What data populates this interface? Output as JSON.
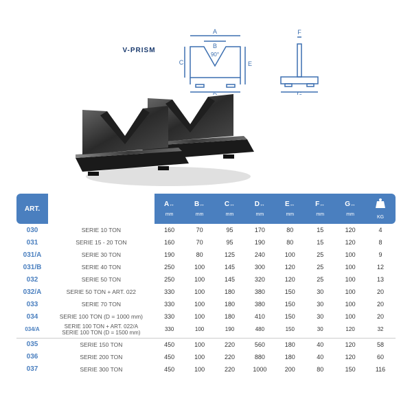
{
  "title": "V-PRISM",
  "diagram": {
    "angle": "90°",
    "labels": [
      "A",
      "B",
      "C",
      "D",
      "E",
      "F",
      "G"
    ],
    "color": "#3c6fb0"
  },
  "header": {
    "art": "ART.",
    "cols": [
      "A",
      "B",
      "C",
      "D",
      "E",
      "F",
      "G"
    ],
    "unit": "mm",
    "weight": "KG"
  },
  "rows": [
    {
      "art": "030",
      "desc": "SERIE 10 TON",
      "v": [
        "160",
        "70",
        "95",
        "170",
        "80",
        "15",
        "120",
        "4"
      ]
    },
    {
      "art": "031",
      "desc": "SERIE 15 - 20 TON",
      "v": [
        "160",
        "70",
        "95",
        "190",
        "80",
        "15",
        "120",
        "8"
      ]
    },
    {
      "art": "031/A",
      "desc": "SERIE 30 TON",
      "v": [
        "190",
        "80",
        "125",
        "240",
        "100",
        "25",
        "100",
        "9"
      ]
    },
    {
      "art": "031/B",
      "desc": "SERIE 40 TON",
      "v": [
        "250",
        "100",
        "145",
        "300",
        "120",
        "25",
        "100",
        "12"
      ]
    },
    {
      "art": "032",
      "desc": "SERIE 50 TON",
      "v": [
        "250",
        "100",
        "145",
        "320",
        "120",
        "25",
        "100",
        "13"
      ]
    },
    {
      "art": "032/A",
      "desc": "SERIE 50 TON + ART. 022",
      "v": [
        "330",
        "100",
        "180",
        "380",
        "150",
        "30",
        "100",
        "20"
      ]
    },
    {
      "art": "033",
      "desc": "SERIE 70 TON",
      "v": [
        "330",
        "100",
        "180",
        "380",
        "150",
        "30",
        "100",
        "20"
      ]
    },
    {
      "art": "034",
      "desc": "SERIE 100 TON (D = 1000 mm)",
      "v": [
        "330",
        "100",
        "180",
        "410",
        "150",
        "30",
        "100",
        "20"
      ]
    },
    {
      "art": "034/A",
      "desc": "SERIE 100 TON + ART. 022/A\nSERIE 100 TON (D = 1500 mm)",
      "v": [
        "330",
        "100",
        "190",
        "480",
        "150",
        "30",
        "120",
        "32"
      ]
    },
    {
      "art": "035",
      "desc": "SERIE 150 TON",
      "v": [
        "450",
        "100",
        "220",
        "560",
        "180",
        "40",
        "120",
        "58"
      ],
      "sep": true
    },
    {
      "art": "036",
      "desc": "SERIE 200 TON",
      "v": [
        "450",
        "100",
        "220",
        "880",
        "180",
        "40",
        "120",
        "60"
      ]
    },
    {
      "art": "037",
      "desc": "SERIE 300 TON",
      "v": [
        "450",
        "100",
        "220",
        "1000",
        "200",
        "80",
        "150",
        "116"
      ]
    }
  ]
}
